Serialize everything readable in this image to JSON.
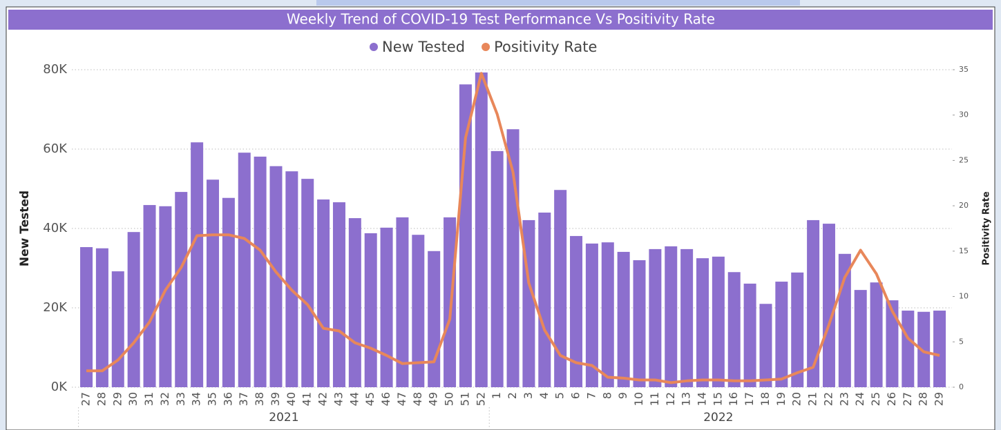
{
  "chart_data": {
    "type": "bar_line",
    "title": "Weekly Trend of COVID-19 Test Performance Vs Positivity Rate",
    "y_label": "New Tested",
    "y2_label": "Positivity Rate",
    "categories": [
      "27",
      "28",
      "29",
      "30",
      "31",
      "32",
      "33",
      "34",
      "35",
      "36",
      "37",
      "38",
      "39",
      "40",
      "41",
      "42",
      "43",
      "44",
      "45",
      "46",
      "47",
      "48",
      "49",
      "50",
      "51",
      "52",
      "1",
      "2",
      "3",
      "4",
      "5",
      "6",
      "7",
      "8",
      "9",
      "10",
      "11",
      "12",
      "13",
      "14",
      "15",
      "16",
      "17",
      "18",
      "19",
      "20",
      "21",
      "22",
      "23",
      "24",
      "25",
      "26",
      "27",
      "28",
      "29"
    ],
    "group_labels": [
      "2021",
      "2022"
    ],
    "series": [
      {
        "name": "New Tested",
        "color": "#8c6fce",
        "kind": "bar",
        "values": [
          35300,
          35000,
          29200,
          39100,
          45900,
          45600,
          49200,
          61700,
          52300,
          47700,
          59100,
          58100,
          55700,
          54400,
          52500,
          47300,
          46600,
          42600,
          38800,
          40200,
          42800,
          38400,
          34300,
          42800,
          76300,
          79300,
          59500,
          65000,
          42100,
          44000,
          49700,
          38100,
          36200,
          36500,
          34100,
          32000,
          34800,
          35500,
          34800,
          32500,
          32900,
          29000,
          26100,
          21000,
          26600,
          28900,
          42100,
          41200,
          33600,
          24500,
          26400,
          21900,
          19300,
          19000,
          19300
        ]
      },
      {
        "name": "Positivity Rate",
        "color": "#e8875a",
        "kind": "line",
        "axis": "y2",
        "values": [
          1.8,
          1.8,
          3.0,
          4.9,
          7.2,
          10.7,
          13.2,
          16.7,
          16.8,
          16.8,
          16.4,
          15.1,
          12.7,
          10.7,
          9.1,
          6.5,
          6.2,
          4.9,
          4.3,
          3.5,
          2.6,
          2.7,
          2.8,
          7.5,
          27.5,
          34.6,
          30.1,
          23.7,
          11.5,
          6.3,
          3.5,
          2.7,
          2.4,
          1.1,
          1.0,
          0.8,
          0.8,
          0.5,
          0.7,
          0.8,
          0.8,
          0.7,
          0.7,
          0.8,
          0.9,
          1.6,
          2.2,
          6.9,
          12.1,
          15.1,
          12.5,
          8.4,
          5.4,
          3.9,
          3.5
        ]
      }
    ],
    "ylim": [
      0,
      80000
    ],
    "yticks": [
      {
        "value": 0,
        "label": "0K"
      },
      {
        "value": 20000,
        "label": "20K"
      },
      {
        "value": 40000,
        "label": "40K"
      },
      {
        "value": 60000,
        "label": "60K"
      },
      {
        "value": 80000,
        "label": "80K"
      }
    ],
    "y2lim": [
      0,
      35
    ],
    "y2ticks": [
      0,
      5,
      10,
      15,
      20,
      25,
      30,
      35
    ],
    "grid": true,
    "legend": "top"
  }
}
